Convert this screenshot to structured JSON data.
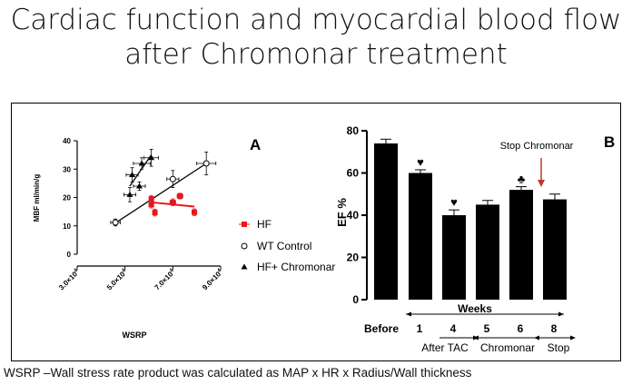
{
  "slide": {
    "title_line1": "Cardiac function and myocardial blood flow",
    "title_line2": "after Chromonar treatment",
    "caption": "WSRP –Wall stress rate product was calculated as MAP x HR x Radius/Wall thickness"
  },
  "chart_data": [
    {
      "type": "scatter",
      "panel_label": "A",
      "xlabel": "WSRP",
      "ylabel": "MBF ml/min/g",
      "xlim": [
        30000,
        90000
      ],
      "ylim": [
        0,
        40
      ],
      "x_ticks": [
        30000,
        50000,
        70000,
        90000
      ],
      "x_tick_labels": [
        {
          "base": "3.0×10",
          "exp": "4"
        },
        {
          "base": "5.0×10",
          "exp": "4"
        },
        {
          "base": "7.0×10",
          "exp": "4"
        },
        {
          "base": "9.0×10",
          "exp": "4"
        }
      ],
      "y_ticks": [
        0,
        10,
        20,
        30,
        40
      ],
      "y_tick_labels": [
        "0",
        "10",
        "20",
        "30",
        "40"
      ],
      "grid": false,
      "legend_position": "right",
      "series": [
        {
          "name": "HF",
          "color": "#e8151b",
          "marker": "filled-square",
          "points": [
            {
              "x": 61000,
              "y": 19.5,
              "xerr": 800,
              "yerr": 1.2
            },
            {
              "x": 61000,
              "y": 17.5,
              "xerr": 800,
              "yerr": 1.2
            },
            {
              "x": 62500,
              "y": 14.7,
              "xerr": 800,
              "yerr": 1.2
            },
            {
              "x": 70000,
              "y": 18.3,
              "xerr": 1200,
              "yerr": 1.2
            },
            {
              "x": 73000,
              "y": 20.5,
              "xerr": 1200,
              "yerr": 1.0
            },
            {
              "x": 79000,
              "y": 14.8,
              "xerr": 1000,
              "yerr": 1.2
            }
          ],
          "fit": {
            "x": [
              61000,
              79000
            ],
            "y": [
              18.3,
              16.8
            ]
          }
        },
        {
          "name": "WT Control",
          "color": "#000000",
          "marker": "open-circle",
          "points": [
            {
              "x": 46000,
              "y": 11.2,
              "xerr": 2000,
              "yerr": 1.2
            },
            {
              "x": 70000,
              "y": 26.5,
              "xerr": 2500,
              "yerr": 3.0
            },
            {
              "x": 84000,
              "y": 32.0,
              "xerr": 4000,
              "yerr": 4.0
            }
          ],
          "fit": {
            "x": [
              46000,
              84000
            ],
            "y": [
              11.0,
              32.0
            ]
          }
        },
        {
          "name": "HF+ Chromonar",
          "color": "#000000",
          "marker": "filled-triangle",
          "points": [
            {
              "x": 52000,
              "y": 21.0,
              "xerr": 2500,
              "yerr": 2.5
            },
            {
              "x": 53000,
              "y": 28.0,
              "xerr": 2500,
              "yerr": 2.5
            },
            {
              "x": 56000,
              "y": 24.0,
              "xerr": 2500,
              "yerr": 1.5
            },
            {
              "x": 57000,
              "y": 32.0,
              "xerr": 3500,
              "yerr": 2.0
            },
            {
              "x": 61000,
              "y": 34.0,
              "xerr": 3000,
              "yerr": 3.0
            }
          ],
          "fit": {
            "x": [
              52000,
              61000
            ],
            "y": [
              24.0,
              35.0
            ]
          }
        }
      ]
    },
    {
      "type": "bar",
      "panel_label": "B",
      "ylabel": "EF %",
      "ylim": [
        0,
        80
      ],
      "y_ticks": [
        0,
        20,
        40,
        60,
        80
      ],
      "y_tick_labels": [
        "0",
        "20",
        "40",
        "60",
        "80"
      ],
      "grid": false,
      "bar_color": "#000000",
      "bars": [
        {
          "label": "Before",
          "value": 74,
          "err": 2,
          "marker": ""
        },
        {
          "label": "1",
          "value": 60,
          "err": 1.5,
          "marker": "♥"
        },
        {
          "label": "4",
          "value": 40,
          "err": 2.5,
          "marker": "♥"
        },
        {
          "label": "5",
          "value": 45,
          "err": 2,
          "marker": ""
        },
        {
          "label": "6",
          "value": 52,
          "err": 1.5,
          "marker": "♣"
        },
        {
          "label": "8",
          "value": 47.5,
          "err": 2.5,
          "marker": ""
        }
      ],
      "annotation": {
        "text": "Stop Chromonar",
        "color": "#c0392b"
      },
      "weeks_label": "Weeks",
      "phases": [
        "After TAC",
        "Chromonar",
        "Stop"
      ]
    }
  ]
}
